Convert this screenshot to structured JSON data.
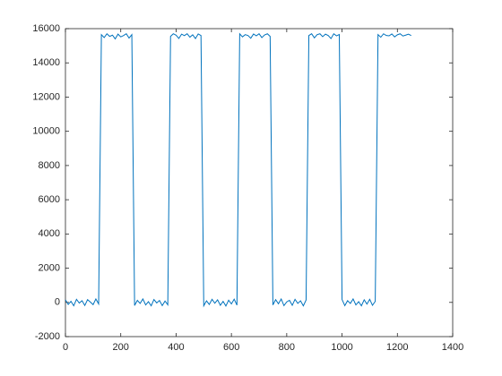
{
  "chart_data": {
    "type": "line",
    "x": [
      0,
      10,
      20,
      30,
      40,
      50,
      60,
      70,
      80,
      90,
      100,
      110,
      120,
      130,
      140,
      150,
      160,
      170,
      180,
      190,
      200,
      210,
      220,
      230,
      240,
      250,
      260,
      270,
      280,
      290,
      300,
      310,
      320,
      330,
      340,
      350,
      360,
      370,
      380,
      390,
      400,
      410,
      420,
      430,
      440,
      450,
      460,
      470,
      480,
      490,
      500,
      510,
      520,
      530,
      540,
      550,
      560,
      570,
      580,
      590,
      600,
      610,
      620,
      630,
      640,
      650,
      660,
      670,
      680,
      690,
      700,
      710,
      720,
      730,
      740,
      750,
      760,
      770,
      780,
      790,
      800,
      810,
      820,
      830,
      840,
      850,
      860,
      870,
      880,
      890,
      900,
      910,
      920,
      930,
      940,
      950,
      960,
      970,
      980,
      990,
      1000,
      1010,
      1020,
      1030,
      1040,
      1050,
      1060,
      1070,
      1080,
      1090,
      1100,
      1110,
      1120,
      1130,
      1140,
      1150,
      1160,
      1170,
      1180,
      1190,
      1200,
      1210,
      1220,
      1230,
      1240,
      1250
    ],
    "values": [
      150,
      -120,
      60,
      -200,
      180,
      -40,
      100,
      -180,
      160,
      20,
      -130,
      200,
      -90,
      15650,
      15480,
      15700,
      15550,
      15620,
      15400,
      15680,
      15520,
      15600,
      15700,
      15450,
      15650,
      -180,
      120,
      -60,
      200,
      -150,
      40,
      -200,
      170,
      -30,
      110,
      -190,
      80,
      -140,
      15550,
      15700,
      15620,
      15430,
      15680,
      15590,
      15700,
      15500,
      15640,
      15420,
      15690,
      15600,
      -200,
      90,
      -120,
      180,
      -50,
      150,
      -170,
      60,
      -210,
      130,
      -90,
      190,
      -160,
      15700,
      15520,
      15650,
      15600,
      15440,
      15690,
      15580,
      15700,
      15480,
      15630,
      15700,
      15550,
      -150,
      160,
      -80,
      200,
      -190,
      30,
      120,
      -170,
      180,
      -60,
      90,
      -200,
      140,
      15600,
      15700,
      15460,
      15650,
      15700,
      15530,
      15680,
      15600,
      15420,
      15700,
      15580,
      15660,
      170,
      -190,
      100,
      -60,
      200,
      -150,
      40,
      -200,
      150,
      -100,
      180,
      -170,
      60,
      15650,
      15500,
      15700,
      15600,
      15580,
      15690,
      15520,
      15640,
      15700,
      15570,
      15620,
      15680,
      15600
    ],
    "color": "#0072bd",
    "xlim": [
      0,
      1400
    ],
    "xticks": [
      0,
      200,
      400,
      600,
      800,
      1000,
      1200,
      1400
    ],
    "ylim": [
      -2000,
      16000
    ],
    "yticks": [
      -2000,
      0,
      2000,
      4000,
      6000,
      8000,
      10000,
      12000,
      14000,
      16000
    ],
    "grid": false
  }
}
